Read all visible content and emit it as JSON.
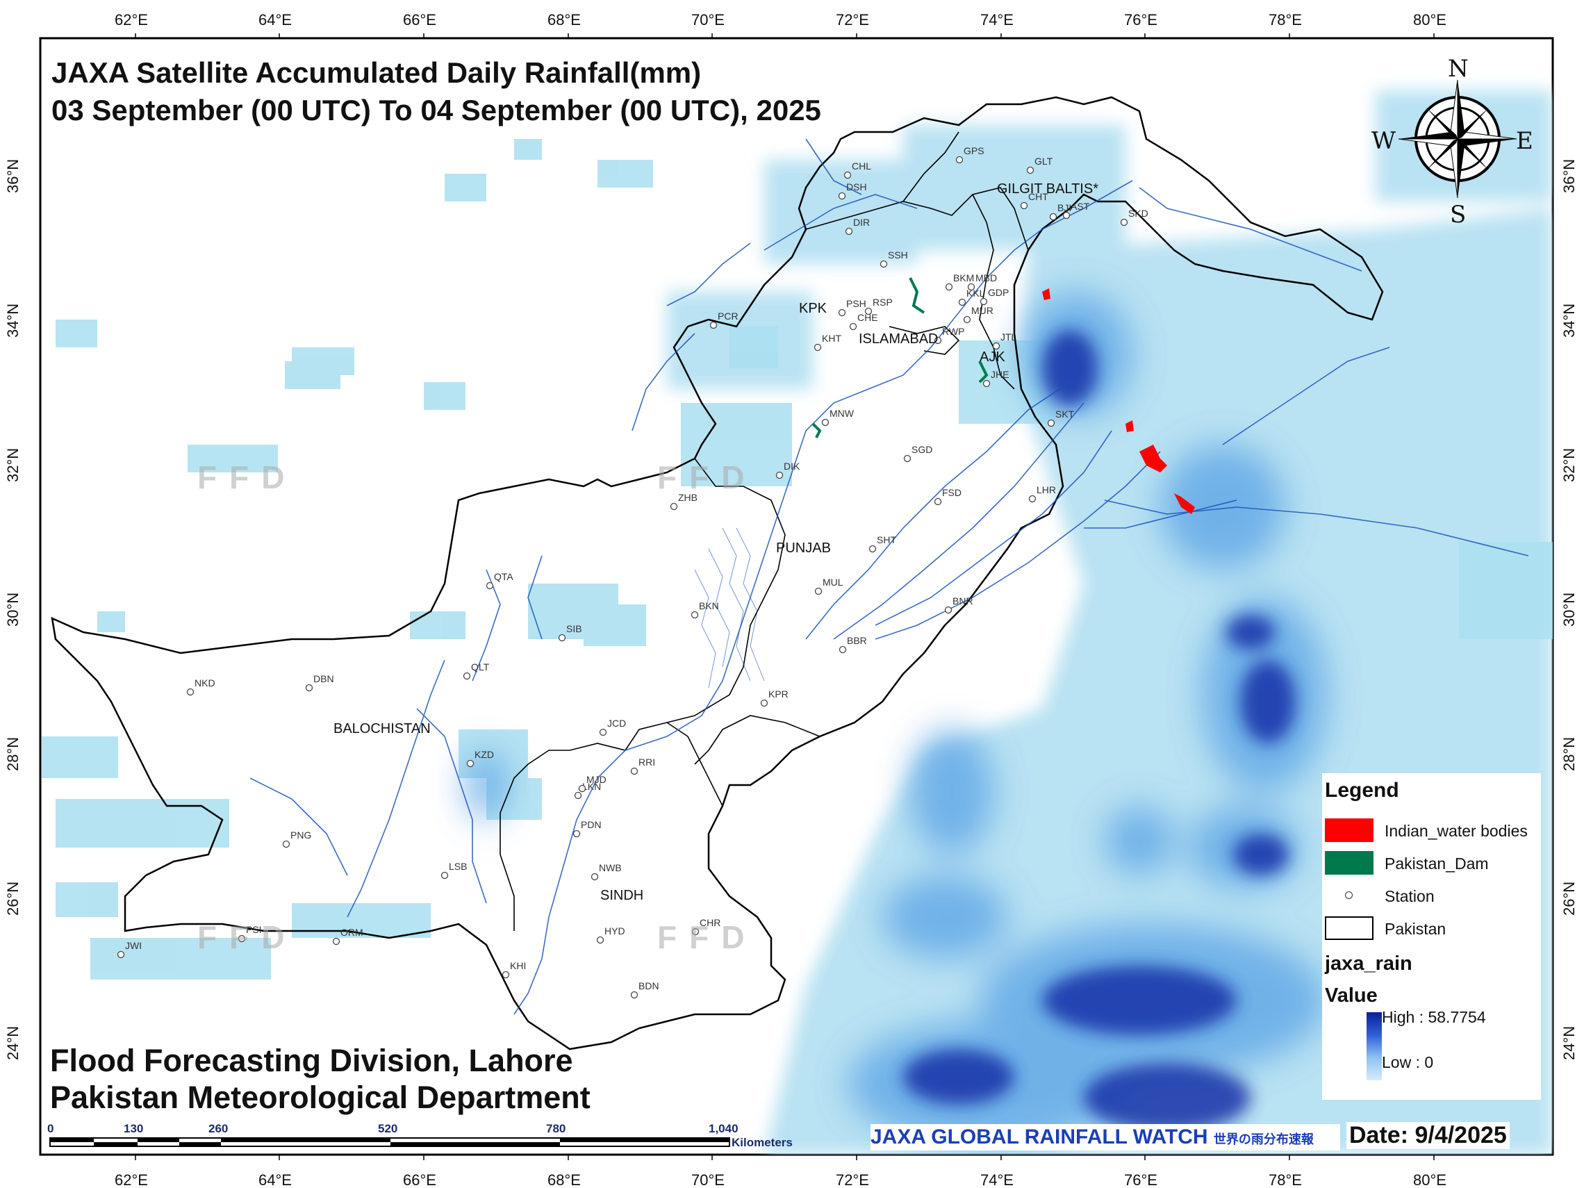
{
  "title": {
    "line1": "JAXA Satellite Accumulated Daily Rainfall(mm)",
    "line2": "03 September  (00 UTC) To 04 September (00 UTC), 2025"
  },
  "footer": {
    "line1": "Flood Forecasting Division, Lahore",
    "line2": "Pakistan Meteorological Department"
  },
  "axes": {
    "lon_ticks": [
      "62°E",
      "64°E",
      "66°E",
      "68°E",
      "70°E",
      "72°E",
      "74°E",
      "76°E",
      "78°E",
      "80°E"
    ],
    "lat_ticks": [
      "36°N",
      "34°N",
      "32°N",
      "30°N",
      "28°N",
      "26°N",
      "24°N"
    ]
  },
  "regions": [
    "GILGIT BALTIS*",
    "KPK",
    "ISLAMABAD",
    "AJK",
    "PUNJAB",
    "BALOCHISTAN",
    "SINDH"
  ],
  "stations": [
    "GPS",
    "GLT",
    "CHL",
    "DSH",
    "CHT",
    "BJI",
    "AST",
    "SKD",
    "DIR",
    "SSH",
    "BKM",
    "MBD",
    "PSH",
    "RSP",
    "KKL",
    "GDP",
    "PCR",
    "CHE",
    "MUR",
    "KHT",
    "RWP",
    "JTL",
    "JHE",
    "MNW",
    "SKT",
    "SGD",
    "DIK",
    "FSD",
    "LHR",
    "ZHB",
    "SHT",
    "QTA",
    "MUL",
    "BKN",
    "BNR",
    "SIB",
    "BBR",
    "NKD",
    "DBN",
    "QLT",
    "KPR",
    "JCD",
    "KZD",
    "RRI",
    "LKN",
    "MJD",
    "PDN",
    "PNG",
    "NWB",
    "LSB",
    "PSI",
    "ORM",
    "HYD",
    "CHR",
    "JWI",
    "KHI",
    "BDN"
  ],
  "watermark": [
    "F",
    "F",
    "D"
  ],
  "compass": {
    "n": "N",
    "s": "S",
    "e": "E",
    "w": "W"
  },
  "legend": {
    "title": "Legend",
    "items": [
      {
        "label": "Indian_water bodies",
        "color": "#ff0000"
      },
      {
        "label": "Pakistan_Dam",
        "color": "#007a4d"
      },
      {
        "label": "Station"
      },
      {
        "label": "Pakistan"
      }
    ],
    "raster_name": "jaxa_rain",
    "value_label": "Value",
    "high": "High : 58.7754",
    "low": "Low : 0"
  },
  "scale_bar": {
    "labels": [
      "0",
      "130",
      "260",
      "520",
      "780",
      "1,040"
    ],
    "unit": "Kilometers"
  },
  "logo_text": "JAXA GLOBAL RAINFALL WATCH",
  "logo_jp": "世界の雨分布速報",
  "date": "Date: 9/4/2025"
}
